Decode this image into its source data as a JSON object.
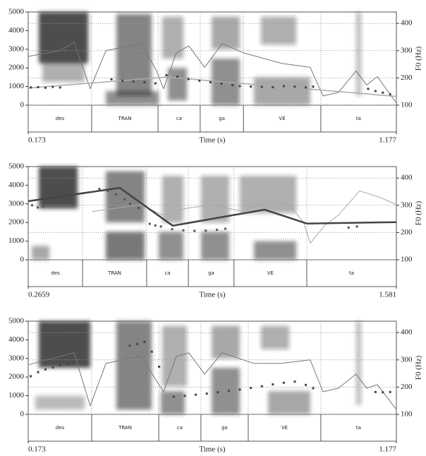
{
  "chart_data": [
    {
      "type": "line",
      "xlabel": "Time (s)",
      "y2label": "F0 (Hz)",
      "xlim": [
        0.173,
        1.177
      ],
      "xticks": [
        0.173,
        1.177
      ],
      "ylim": [
        0,
        5000
      ],
      "yticks": [
        0,
        1000,
        2000,
        3000,
        4000,
        5000
      ],
      "y2lim": [
        100,
        442
      ],
      "y2ticks": [
        100,
        200,
        300,
        400
      ],
      "grid": true,
      "tier": {
        "labels": [
          "des",
          "TRAN",
          "ca",
          "ga",
          "VE",
          "ta"
        ],
        "boundaries": [
          0.346,
          0.527,
          0.642,
          0.76,
          0.971
        ]
      },
      "series": [
        {
          "color": "#777",
          "axis": "y2",
          "linewidth": 1,
          "x": [
            0.173,
            0.26,
            0.298,
            0.342,
            0.385,
            0.481,
            0.523,
            0.542,
            0.577,
            0.611,
            0.654,
            0.702,
            0.76,
            0.865,
            0.942,
            0.977,
            1.019,
            1.067,
            1.096,
            1.125,
            1.177
          ],
          "values": [
            279,
            300,
            331,
            161,
            300,
            326,
            226,
            160,
            292,
            318,
            239,
            326,
            292,
            253,
            239,
            134,
            147,
            226,
            174,
            205,
            108
          ]
        },
        {
          "color": "#aaa",
          "axis": "y2",
          "linewidth": 1.5,
          "x": [
            0.173,
            0.55,
            1.177
          ],
          "values": [
            163,
            203,
            132
          ]
        },
        {
          "color": "#444",
          "axis": "y2",
          "marker": "dots",
          "x": [
            0.18,
            0.2,
            0.22,
            0.24,
            0.26,
            0.4,
            0.43,
            0.46,
            0.49,
            0.52,
            0.55,
            0.58,
            0.61,
            0.64,
            0.67,
            0.7,
            0.73,
            0.75,
            0.78,
            0.81,
            0.84,
            0.87,
            0.9,
            0.93,
            0.95,
            1.1,
            1.12,
            1.14,
            1.16
          ],
          "values": [
            165,
            166,
            164,
            167,
            165,
            195,
            190,
            187,
            184,
            180,
            210,
            205,
            196,
            190,
            184,
            179,
            174,
            170,
            168,
            167,
            166,
            170,
            168,
            165,
            168,
            160,
            152,
            146,
            140
          ]
        }
      ]
    },
    {
      "type": "line",
      "xlabel": "Time (s)",
      "y2label": "F0 (Hz)",
      "xlim": [
        0.2659,
        1.581
      ],
      "xticks": [
        0.2659,
        1.581
      ],
      "ylim": [
        0,
        5000
      ],
      "yticks": [
        0,
        1000,
        2000,
        3000,
        4000,
        5000
      ],
      "y2lim": [
        100,
        442
      ],
      "y2ticks": [
        100,
        200,
        300,
        400
      ],
      "grid": true,
      "tier": {
        "labels": [
          "des",
          "TRAN",
          "ca",
          "ga",
          "VE",
          "ta"
        ],
        "boundaries": [
          0.46,
          0.689,
          0.838,
          1.001,
          1.261
        ]
      },
      "series": [
        {
          "color": "#aaa",
          "axis": "y2",
          "linewidth": 1,
          "x": [
            0.493,
            0.669,
            0.745,
            0.833,
            0.921,
            1.034,
            1.122,
            1.198,
            1.249,
            1.274,
            1.324,
            1.374,
            1.45,
            1.525,
            1.581
          ],
          "values": [
            277,
            302,
            264,
            289,
            302,
            277,
            315,
            302,
            238,
            161,
            225,
            264,
            353,
            328,
            302
          ]
        },
        {
          "color": "#444",
          "axis": "y2",
          "linewidth": 2.5,
          "x": [
            0.266,
            0.593,
            0.782,
            1.11,
            1.261,
            1.581
          ],
          "values": [
            315,
            364,
            225,
            284,
            233,
            238
          ]
        },
        {
          "color": "#555",
          "axis": "y2",
          "marker": "dots",
          "x": [
            0.28,
            0.3,
            0.32,
            0.52,
            0.55,
            0.58,
            0.61,
            0.63,
            0.66,
            0.7,
            0.72,
            0.74,
            0.78,
            0.82,
            0.86,
            0.9,
            0.94,
            0.97,
            1.41,
            1.44
          ],
          "values": [
            300,
            292,
            295,
            360,
            352,
            340,
            322,
            305,
            290,
            232,
            226,
            222,
            212,
            208,
            206,
            207,
            210,
            214,
            218,
            222
          ]
        }
      ]
    },
    {
      "type": "line",
      "xlabel": "Time (s)",
      "y2label": "F0 (Hz)",
      "xlim": [
        0.173,
        1.177
      ],
      "xticks": [
        0.173,
        1.177
      ],
      "ylim": [
        0,
        5000
      ],
      "yticks": [
        0,
        1000,
        2000,
        3000,
        4000,
        5000
      ],
      "y2lim": [
        100,
        442
      ],
      "y2ticks": [
        100,
        200,
        300,
        400
      ],
      "grid": true,
      "tier": {
        "labels": [
          "des",
          "TRAN",
          "ca",
          "ga",
          "VE",
          "ta"
        ],
        "boundaries": [
          0.346,
          0.529,
          0.644,
          0.773,
          0.971
        ]
      },
      "series": [
        {
          "color": "#777",
          "axis": "y2",
          "linewidth": 1,
          "x": [
            0.173,
            0.26,
            0.298,
            0.342,
            0.385,
            0.481,
            0.523,
            0.542,
            0.577,
            0.611,
            0.654,
            0.702,
            0.788,
            0.865,
            0.942,
            0.977,
            1.019,
            1.067,
            1.096,
            1.125,
            1.177
          ],
          "values": [
            282,
            313,
            326,
            131,
            287,
            313,
            222,
            183,
            313,
            326,
            248,
            326,
            287,
            287,
            300,
            183,
            196,
            248,
            196,
            209,
            118
          ]
        },
        {
          "color": "#444",
          "axis": "y2",
          "marker": "dots",
          "x": [
            0.18,
            0.2,
            0.22,
            0.24,
            0.26,
            0.28,
            0.45,
            0.47,
            0.49,
            0.51,
            0.53,
            0.57,
            0.6,
            0.63,
            0.66,
            0.69,
            0.72,
            0.75,
            0.78,
            0.81,
            0.84,
            0.87,
            0.9,
            0.93,
            0.95,
            1.12,
            1.14,
            1.16
          ],
          "values": [
            240,
            255,
            265,
            272,
            280,
            285,
            352,
            358,
            366,
            330,
            275,
            165,
            168,
            172,
            176,
            181,
            186,
            191,
            197,
            203,
            210,
            216,
            220,
            208,
            196,
            182,
            181,
            182
          ]
        }
      ]
    }
  ]
}
